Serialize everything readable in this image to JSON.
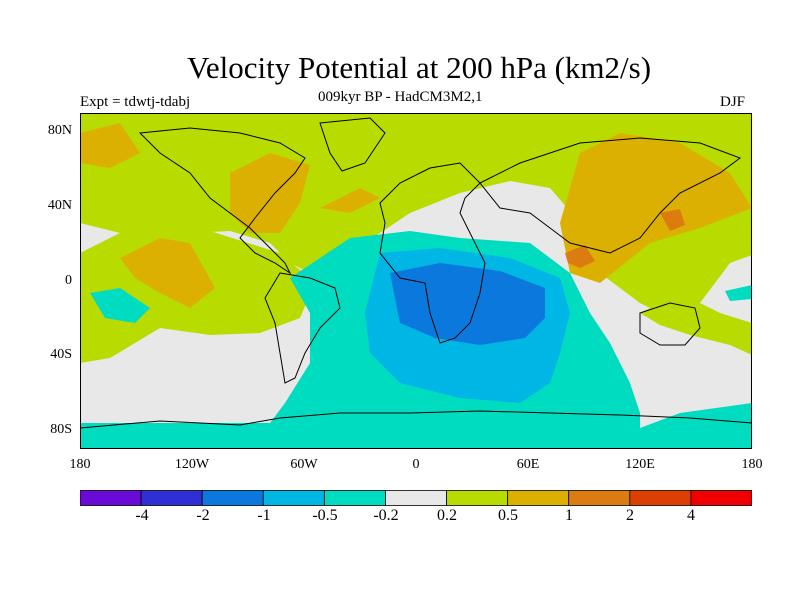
{
  "header": {
    "title": "Velocity Potential at 200 hPa (km2/s)",
    "subtitle": "009kyr BP - HadCM3M2,1",
    "experiment": "Expt = tdwtj-tdabj",
    "season": "DJF"
  },
  "axes": {
    "lat_labels": [
      "80N",
      "40N",
      "0",
      "40S",
      "80S"
    ],
    "lon_labels": [
      "180",
      "120W",
      "60W",
      "0",
      "60E",
      "120E",
      "180"
    ]
  },
  "colorbar": {
    "colors": [
      "#6a0ad6",
      "#2f2fd6",
      "#0a78dc",
      "#00b6e4",
      "#00dcc0",
      "#e8e8e8",
      "#b8dc00",
      "#dcb000",
      "#dc7c10",
      "#dc4000",
      "#f00000"
    ],
    "labels": [
      "-4",
      "-2",
      "-1",
      "-0.5",
      "-0.2",
      "0.2",
      "0.5",
      "1",
      "2",
      "4"
    ]
  },
  "map_colors": {
    "ocean_neutral": "#e8e8e8",
    "neg_weak": "#00dcc0",
    "neg_mid": "#00b6e4",
    "neg_strong": "#0a78dc",
    "pos_weak": "#b8dc00",
    "pos_mid": "#dcb000",
    "pos_strong": "#dc7c10",
    "coast": "#000000"
  }
}
